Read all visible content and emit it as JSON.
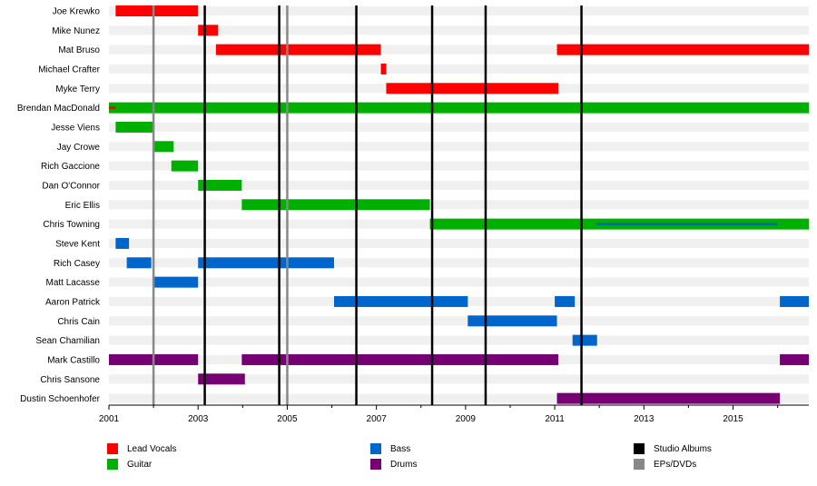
{
  "chart_data": {
    "type": "timeline",
    "title": "",
    "x_range": [
      2001.0,
      2016.7
    ],
    "x_ticks": [
      "2001",
      "2003",
      "2005",
      "2007",
      "2009",
      "2011",
      "2013",
      "2015"
    ],
    "roles": {
      "lead_vocals": {
        "label": "Lead Vocals",
        "color": "#ff0000"
      },
      "guitar": {
        "label": "Guitar",
        "color": "#00b000"
      },
      "bass": {
        "label": "Bass",
        "color": "#0066cc"
      },
      "drums": {
        "label": "Drums",
        "color": "#760073"
      }
    },
    "markers": {
      "studio": {
        "label": "Studio Albums",
        "color": "#000000",
        "years": [
          2003.15,
          2004.82,
          2006.55,
          2008.25,
          2009.45,
          2011.6
        ]
      },
      "ep": {
        "label": "EPs/DVDs",
        "color": "#888888",
        "years": [
          2002.0,
          2005.0
        ]
      }
    },
    "members": [
      {
        "name": "Joe Krewko",
        "spans": [
          {
            "role": "lead_vocals",
            "start": 2001.15,
            "end": 2003.0
          }
        ]
      },
      {
        "name": "Mike Nunez",
        "spans": [
          {
            "role": "lead_vocals",
            "start": 2003.0,
            "end": 2003.45
          }
        ]
      },
      {
        "name": "Mat Bruso",
        "spans": [
          {
            "role": "lead_vocals",
            "start": 2003.4,
            "end": 2007.1
          },
          {
            "role": "lead_vocals",
            "start": 2011.05,
            "end": 2016.7
          }
        ]
      },
      {
        "name": "Michael Crafter",
        "spans": [
          {
            "role": "lead_vocals",
            "start": 2007.1,
            "end": 2007.22
          }
        ]
      },
      {
        "name": "Myke Terry",
        "spans": [
          {
            "role": "lead_vocals",
            "start": 2007.22,
            "end": 2011.08
          }
        ]
      },
      {
        "name": "Brendan MacDonald",
        "spans": [
          {
            "role": "guitar",
            "start": 2001.0,
            "end": 2016.7
          },
          {
            "role": "lead_vocals",
            "start": 2001.0,
            "end": 2001.15,
            "thin": true
          }
        ]
      },
      {
        "name": "Jesse Viens",
        "spans": [
          {
            "role": "guitar",
            "start": 2001.15,
            "end": 2002.0
          }
        ]
      },
      {
        "name": "Jay Crowe",
        "spans": [
          {
            "role": "guitar",
            "start": 2002.0,
            "end": 2002.45
          }
        ]
      },
      {
        "name": "Rich Gaccione",
        "spans": [
          {
            "role": "guitar",
            "start": 2002.4,
            "end": 2003.0
          }
        ]
      },
      {
        "name": "Dan O'Connor",
        "spans": [
          {
            "role": "guitar",
            "start": 2003.0,
            "end": 2003.98
          }
        ]
      },
      {
        "name": "Eric Ellis",
        "spans": [
          {
            "role": "guitar",
            "start": 2003.98,
            "end": 2008.2
          }
        ]
      },
      {
        "name": "Chris Towning",
        "spans": [
          {
            "role": "guitar",
            "start": 2008.2,
            "end": 2016.7
          },
          {
            "role": "bass",
            "start": 2011.95,
            "end": 2016.0,
            "thin": true
          }
        ]
      },
      {
        "name": "Steve Kent",
        "spans": [
          {
            "role": "bass",
            "start": 2001.15,
            "end": 2001.45
          }
        ]
      },
      {
        "name": "Rich Casey",
        "spans": [
          {
            "role": "bass",
            "start": 2001.4,
            "end": 2001.95
          },
          {
            "role": "bass",
            "start": 2003.0,
            "end": 2006.05
          }
        ]
      },
      {
        "name": "Matt Lacasse",
        "spans": [
          {
            "role": "bass",
            "start": 2002.0,
            "end": 2003.0
          }
        ]
      },
      {
        "name": "Aaron Patrick",
        "spans": [
          {
            "role": "bass",
            "start": 2006.05,
            "end": 2009.05
          },
          {
            "role": "bass",
            "start": 2011.0,
            "end": 2011.45
          },
          {
            "role": "bass",
            "start": 2016.05,
            "end": 2016.7
          }
        ]
      },
      {
        "name": "Chris Cain",
        "spans": [
          {
            "role": "bass",
            "start": 2009.05,
            "end": 2011.05
          }
        ]
      },
      {
        "name": "Sean Chamilian",
        "spans": [
          {
            "role": "bass",
            "start": 2011.4,
            "end": 2011.95
          }
        ]
      },
      {
        "name": "Mark Castillo",
        "spans": [
          {
            "role": "drums",
            "start": 2001.0,
            "end": 2003.0
          },
          {
            "role": "drums",
            "start": 2003.98,
            "end": 2011.08
          },
          {
            "role": "drums",
            "start": 2016.05,
            "end": 2016.7
          }
        ]
      },
      {
        "name": "Chris Sansone",
        "spans": [
          {
            "role": "drums",
            "start": 2003.0,
            "end": 2004.05
          }
        ]
      },
      {
        "name": "Dustin Schoenhofer",
        "spans": [
          {
            "role": "drums",
            "start": 2011.05,
            "end": 2016.05
          }
        ]
      }
    ]
  }
}
